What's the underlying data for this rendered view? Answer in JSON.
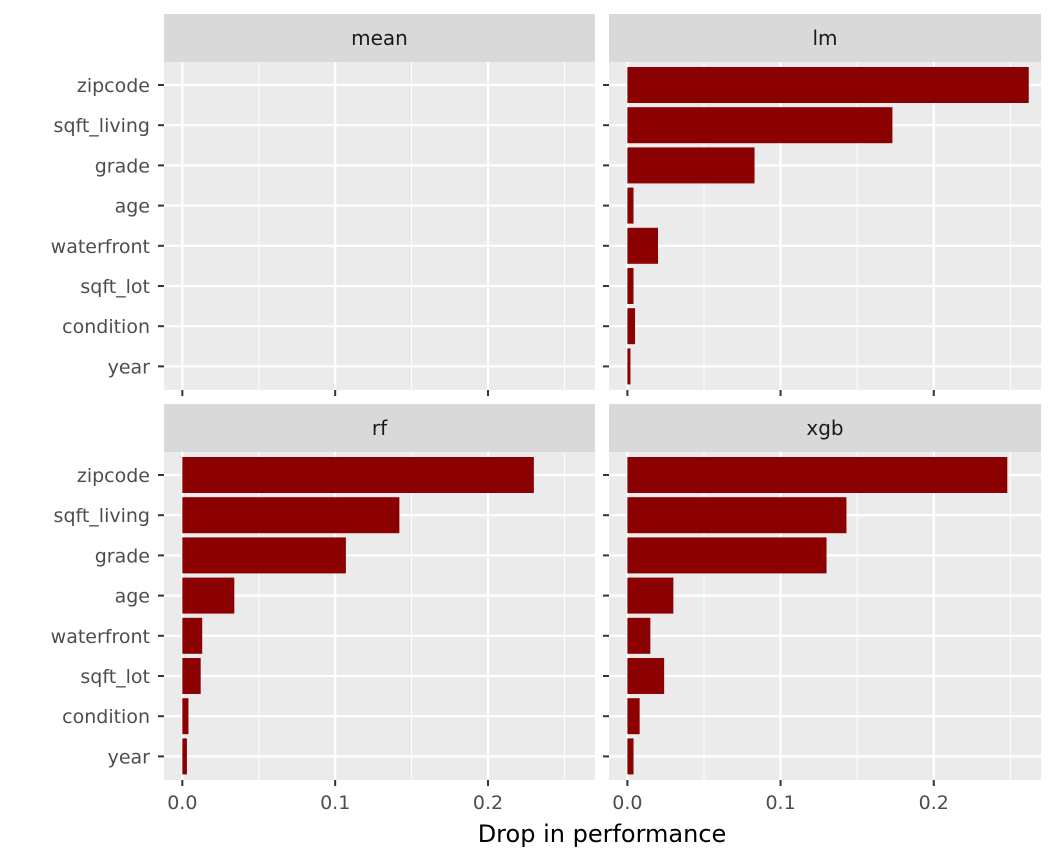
{
  "chart_data": {
    "type": "bar",
    "orientation": "horizontal",
    "facet_layout": "2x2",
    "xlabel": "Drop in performance",
    "ylabel": "",
    "categories": [
      "zipcode",
      "sqft_living",
      "grade",
      "age",
      "waterfront",
      "sqft_lot",
      "condition",
      "year"
    ],
    "xlim": [
      -0.012,
      0.27
    ],
    "x_ticks": [
      0.0,
      0.1,
      0.2
    ],
    "x_tick_labels": [
      "0.0",
      "0.1",
      "0.2"
    ],
    "grid": true,
    "bar_color": "#8b0000",
    "panel_background": "#ebebeb",
    "strip_background": "#d9d9d9",
    "panels": [
      {
        "name": "mean",
        "values": [
          0,
          0,
          0,
          0,
          0,
          0,
          0,
          0
        ]
      },
      {
        "name": "lm",
        "values": [
          0.262,
          0.173,
          0.083,
          0.004,
          0.02,
          0.004,
          0.005,
          0.002
        ]
      },
      {
        "name": "rf",
        "values": [
          0.23,
          0.142,
          0.107,
          0.034,
          0.013,
          0.012,
          0.004,
          0.003
        ]
      },
      {
        "name": "xgb",
        "values": [
          0.248,
          0.143,
          0.13,
          0.03,
          0.015,
          0.024,
          0.008,
          0.004
        ]
      }
    ]
  }
}
